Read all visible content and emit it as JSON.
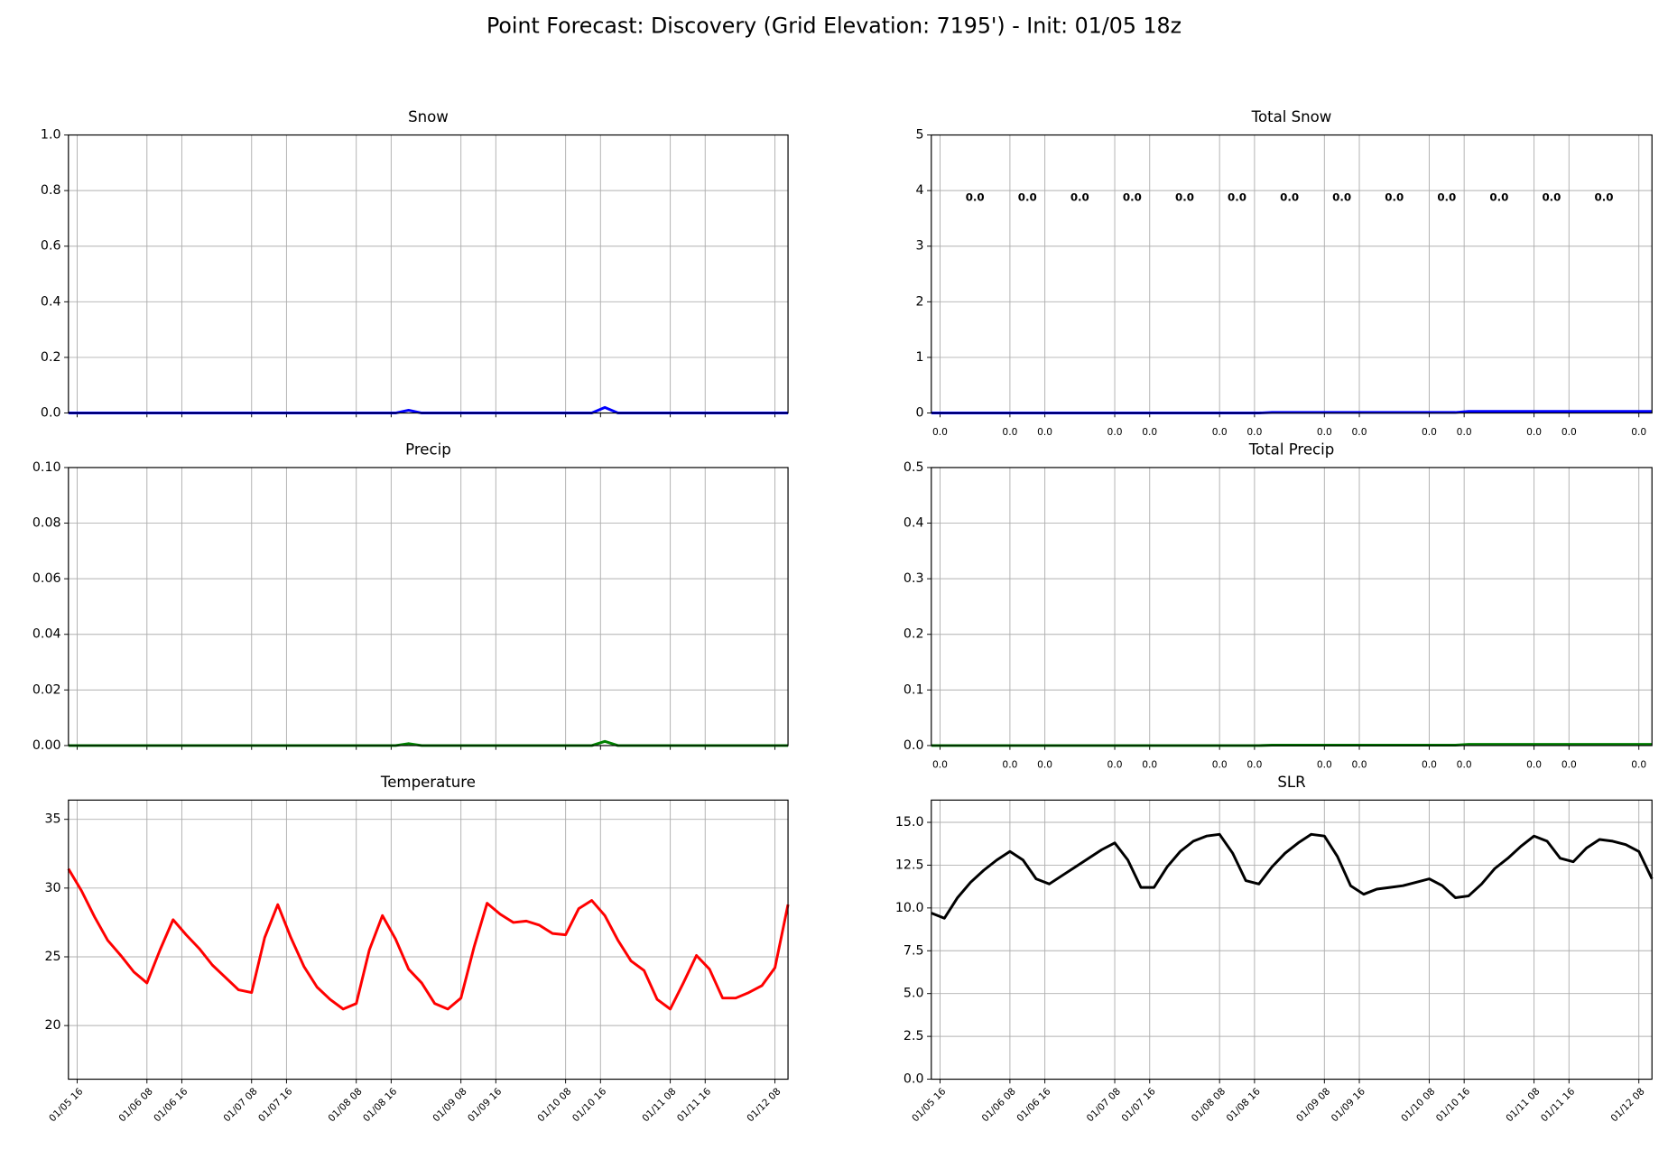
{
  "title": "Point Forecast: Discovery (Grid Elevation: 7195') - Init: 01/05 18z",
  "chart_data": [
    {
      "type": "line",
      "title": "Snow",
      "color": "#0000ff",
      "grid": true,
      "xtick_labels": false,
      "x": [
        "01/05 14",
        "01/05 17",
        "01/05 20",
        "01/05 23",
        "01/06 02",
        "01/06 05",
        "01/06 08",
        "01/06 11",
        "01/06 14",
        "01/06 17",
        "01/06 20",
        "01/06 23",
        "01/07 02",
        "01/07 05",
        "01/07 08",
        "01/07 11",
        "01/07 14",
        "01/07 17",
        "01/07 20",
        "01/07 23",
        "01/08 02",
        "01/08 05",
        "01/08 08",
        "01/08 11",
        "01/08 14",
        "01/08 17",
        "01/08 20",
        "01/08 23",
        "01/09 02",
        "01/09 05",
        "01/09 08",
        "01/09 11",
        "01/09 14",
        "01/09 17",
        "01/09 20",
        "01/09 23",
        "01/10 02",
        "01/10 05",
        "01/10 08",
        "01/10 11",
        "01/10 14",
        "01/10 17",
        "01/10 20",
        "01/10 23",
        "01/11 02",
        "01/11 05",
        "01/11 08",
        "01/11 11",
        "01/11 14",
        "01/11 17",
        "01/11 20",
        "01/11 23",
        "01/12 02",
        "01/12 05",
        "01/12 08",
        "01/12 11"
      ],
      "values": [
        0,
        0,
        0,
        0,
        0,
        0,
        0,
        0,
        0,
        0,
        0,
        0,
        0,
        0,
        0,
        0,
        0,
        0,
        0,
        0,
        0,
        0,
        0,
        0,
        0,
        0,
        0.01,
        0,
        0,
        0,
        0,
        0,
        0,
        0,
        0,
        0,
        0,
        0,
        0,
        0,
        0,
        0.02,
        0,
        0,
        0,
        0,
        0,
        0,
        0,
        0,
        0,
        0,
        0,
        0,
        0,
        0
      ],
      "xlim": [
        "01/05 14",
        "01/12 11"
      ],
      "xticks": [
        "01/05 16",
        "01/06 08",
        "01/06 16",
        "01/07 08",
        "01/07 16",
        "01/08 08",
        "01/08 16",
        "01/09 08",
        "01/09 16",
        "01/10 08",
        "01/10 16",
        "01/11 08",
        "01/11 16",
        "01/12 08"
      ],
      "ylim": [
        0,
        1
      ],
      "yticks": [
        {
          "value": 0,
          "label": "0.0"
        },
        {
          "value": 0.2,
          "label": "0.2"
        },
        {
          "value": 0.4,
          "label": "0.4"
        },
        {
          "value": 0.6,
          "label": "0.6"
        },
        {
          "value": 0.8,
          "label": "0.8"
        },
        {
          "value": 1,
          "label": "1.0"
        }
      ]
    },
    {
      "type": "line",
      "title": "Total Snow",
      "color": "#0000ff",
      "grid": true,
      "annotation_color": "#0000ff",
      "x": [
        "01/05 14",
        "01/05 17",
        "01/05 20",
        "01/05 23",
        "01/06 02",
        "01/06 05",
        "01/06 08",
        "01/06 11",
        "01/06 14",
        "01/06 17",
        "01/06 20",
        "01/06 23",
        "01/07 02",
        "01/07 05",
        "01/07 08",
        "01/07 11",
        "01/07 14",
        "01/07 17",
        "01/07 20",
        "01/07 23",
        "01/08 02",
        "01/08 05",
        "01/08 08",
        "01/08 11",
        "01/08 14",
        "01/08 17",
        "01/08 20",
        "01/08 23",
        "01/09 02",
        "01/09 05",
        "01/09 08",
        "01/09 11",
        "01/09 14",
        "01/09 17",
        "01/09 20",
        "01/09 23",
        "01/10 02",
        "01/10 05",
        "01/10 08",
        "01/10 11",
        "01/10 14",
        "01/10 17",
        "01/10 20",
        "01/10 23",
        "01/11 02",
        "01/11 05",
        "01/11 08",
        "01/11 11",
        "01/11 14",
        "01/11 17",
        "01/11 20",
        "01/11 23",
        "01/12 02",
        "01/12 05",
        "01/12 08",
        "01/12 11"
      ],
      "values": [
        0,
        0,
        0,
        0,
        0,
        0,
        0,
        0,
        0,
        0,
        0,
        0,
        0,
        0,
        0,
        0,
        0,
        0,
        0,
        0,
        0,
        0,
        0,
        0,
        0,
        0,
        0.01,
        0.01,
        0.01,
        0.01,
        0.01,
        0.01,
        0.01,
        0.01,
        0.01,
        0.01,
        0.01,
        0.01,
        0.01,
        0.01,
        0.01,
        0.03,
        0.03,
        0.03,
        0.03,
        0.03,
        0.03,
        0.03,
        0.03,
        0.03,
        0.03,
        0.03,
        0.03,
        0.03,
        0.03,
        0.03
      ],
      "xlim": [
        "01/05 14",
        "01/12 11"
      ],
      "xticks": [
        {
          "value": "01/05 16",
          "label": "0.0"
        },
        {
          "value": "01/06 08",
          "label": "0.0"
        },
        {
          "value": "01/06 16",
          "label": "0.0"
        },
        {
          "value": "01/07 08",
          "label": "0.0"
        },
        {
          "value": "01/07 16",
          "label": "0.0"
        },
        {
          "value": "01/08 08",
          "label": "0.0"
        },
        {
          "value": "01/08 16",
          "label": "0.0"
        },
        {
          "value": "01/09 08",
          "label": "0.0"
        },
        {
          "value": "01/09 16",
          "label": "0.0"
        },
        {
          "value": "01/10 08",
          "label": "0.0"
        },
        {
          "value": "01/10 16",
          "label": "0.0"
        },
        {
          "value": "01/11 08",
          "label": "0.0"
        },
        {
          "value": "01/11 16",
          "label": "0.0"
        },
        {
          "value": "01/12 08",
          "label": "0.0"
        }
      ],
      "ylim": [
        0,
        5
      ],
      "yticks": [
        0,
        1,
        2,
        3,
        4,
        5
      ],
      "annotations": [
        {
          "x": "01/06 00",
          "text": "0.0"
        },
        {
          "x": "01/06 12",
          "text": "0.0"
        },
        {
          "x": "01/07 00",
          "text": "0.0"
        },
        {
          "x": "01/07 12",
          "text": "0.0"
        },
        {
          "x": "01/08 00",
          "text": "0.0"
        },
        {
          "x": "01/08 12",
          "text": "0.0"
        },
        {
          "x": "01/09 00",
          "text": "0.0"
        },
        {
          "x": "01/09 12",
          "text": "0.0"
        },
        {
          "x": "01/10 00",
          "text": "0.0"
        },
        {
          "x": "01/10 12",
          "text": "0.0"
        },
        {
          "x": "01/11 00",
          "text": "0.0"
        },
        {
          "x": "01/11 12",
          "text": "0.0"
        },
        {
          "x": "01/12 00",
          "text": "0.0"
        }
      ]
    },
    {
      "type": "line",
      "title": "Precip",
      "color": "#008000",
      "grid": true,
      "xtick_labels": false,
      "x": [
        "01/05 14",
        "01/05 17",
        "01/05 20",
        "01/05 23",
        "01/06 02",
        "01/06 05",
        "01/06 08",
        "01/06 11",
        "01/06 14",
        "01/06 17",
        "01/06 20",
        "01/06 23",
        "01/07 02",
        "01/07 05",
        "01/07 08",
        "01/07 11",
        "01/07 14",
        "01/07 17",
        "01/07 20",
        "01/07 23",
        "01/08 02",
        "01/08 05",
        "01/08 08",
        "01/08 11",
        "01/08 14",
        "01/08 17",
        "01/08 20",
        "01/08 23",
        "01/09 02",
        "01/09 05",
        "01/09 08",
        "01/09 11",
        "01/09 14",
        "01/09 17",
        "01/09 20",
        "01/09 23",
        "01/10 02",
        "01/10 05",
        "01/10 08",
        "01/10 11",
        "01/10 14",
        "01/10 17",
        "01/10 20",
        "01/10 23",
        "01/11 02",
        "01/11 05",
        "01/11 08",
        "01/11 11",
        "01/11 14",
        "01/11 17",
        "01/11 20",
        "01/11 23",
        "01/12 02",
        "01/12 05",
        "01/12 08",
        "01/12 11"
      ],
      "values": [
        0,
        0,
        0,
        0,
        0,
        0,
        0,
        0,
        0,
        0,
        0,
        0,
        0,
        0,
        0,
        0,
        0,
        0,
        0,
        0,
        0,
        0,
        0,
        0,
        0,
        0,
        0.0007,
        0,
        0,
        0,
        0,
        0,
        0,
        0,
        0,
        0,
        0,
        0,
        0,
        0,
        0,
        0.0015,
        0,
        0,
        0,
        0,
        0,
        0,
        0,
        0,
        0,
        0,
        0,
        0,
        0,
        0
      ],
      "xlim": [
        "01/05 14",
        "01/12 11"
      ],
      "xticks": [
        "01/05 16",
        "01/06 08",
        "01/06 16",
        "01/07 08",
        "01/07 16",
        "01/08 08",
        "01/08 16",
        "01/09 08",
        "01/09 16",
        "01/10 08",
        "01/10 16",
        "01/11 08",
        "01/11 16",
        "01/12 08"
      ],
      "ylim": [
        0,
        0.1
      ],
      "yticks": [
        {
          "value": 0,
          "label": "0.00"
        },
        {
          "value": 0.02,
          "label": "0.02"
        },
        {
          "value": 0.04,
          "label": "0.04"
        },
        {
          "value": 0.06,
          "label": "0.06"
        },
        {
          "value": 0.08,
          "label": "0.08"
        },
        {
          "value": 0.1,
          "label": "0.10"
        }
      ]
    },
    {
      "type": "line",
      "title": "Total Precip",
      "color": "#008000",
      "grid": true,
      "x": [
        "01/05 14",
        "01/05 17",
        "01/05 20",
        "01/05 23",
        "01/06 02",
        "01/06 05",
        "01/06 08",
        "01/06 11",
        "01/06 14",
        "01/06 17",
        "01/06 20",
        "01/06 23",
        "01/07 02",
        "01/07 05",
        "01/07 08",
        "01/07 11",
        "01/07 14",
        "01/07 17",
        "01/07 20",
        "01/07 23",
        "01/08 02",
        "01/08 05",
        "01/08 08",
        "01/08 11",
        "01/08 14",
        "01/08 17",
        "01/08 20",
        "01/08 23",
        "01/09 02",
        "01/09 05",
        "01/09 08",
        "01/09 11",
        "01/09 14",
        "01/09 17",
        "01/09 20",
        "01/09 23",
        "01/10 02",
        "01/10 05",
        "01/10 08",
        "01/10 11",
        "01/10 14",
        "01/10 17",
        "01/10 20",
        "01/10 23",
        "01/11 02",
        "01/11 05",
        "01/11 08",
        "01/11 11",
        "01/11 14",
        "01/11 17",
        "01/11 20",
        "01/11 23",
        "01/12 02",
        "01/12 05",
        "01/12 08",
        "01/12 11"
      ],
      "values": [
        0,
        0,
        0,
        0,
        0,
        0,
        0,
        0,
        0,
        0,
        0,
        0,
        0,
        0,
        0,
        0,
        0,
        0,
        0,
        0,
        0,
        0,
        0,
        0,
        0,
        0,
        0.0007,
        0.0007,
        0.0007,
        0.0007,
        0.0007,
        0.0007,
        0.0007,
        0.0007,
        0.0007,
        0.0007,
        0.0007,
        0.0007,
        0.0007,
        0.0007,
        0.0007,
        0.0022,
        0.0022,
        0.0022,
        0.0022,
        0.0022,
        0.0022,
        0.0022,
        0.0022,
        0.0022,
        0.0022,
        0.0022,
        0.0022,
        0.0022,
        0.0022,
        0.0022
      ],
      "xlim": [
        "01/05 14",
        "01/12 11"
      ],
      "xticks": [
        {
          "value": "01/05 16",
          "label": "0.0"
        },
        {
          "value": "01/06 08",
          "label": "0.0"
        },
        {
          "value": "01/06 16",
          "label": "0.0"
        },
        {
          "value": "01/07 08",
          "label": "0.0"
        },
        {
          "value": "01/07 16",
          "label": "0.0"
        },
        {
          "value": "01/08 08",
          "label": "0.0"
        },
        {
          "value": "01/08 16",
          "label": "0.0"
        },
        {
          "value": "01/09 08",
          "label": "0.0"
        },
        {
          "value": "01/09 16",
          "label": "0.0"
        },
        {
          "value": "01/10 08",
          "label": "0.0"
        },
        {
          "value": "01/10 16",
          "label": "0.0"
        },
        {
          "value": "01/11 08",
          "label": "0.0"
        },
        {
          "value": "01/11 16",
          "label": "0.0"
        },
        {
          "value": "01/12 08",
          "label": "0.0"
        }
      ],
      "ylim": [
        0,
        0.5
      ],
      "yticks": [
        {
          "value": 0,
          "label": "0.0"
        },
        {
          "value": 0.1,
          "label": "0.1"
        },
        {
          "value": 0.2,
          "label": "0.2"
        },
        {
          "value": 0.3,
          "label": "0.3"
        },
        {
          "value": 0.4,
          "label": "0.4"
        },
        {
          "value": 0.5,
          "label": "0.5"
        }
      ]
    },
    {
      "type": "line",
      "title": "Temperature",
      "color": "#ff0000",
      "grid": true,
      "x": [
        "01/05 14",
        "01/05 17",
        "01/05 20",
        "01/05 23",
        "01/06 02",
        "01/06 05",
        "01/06 08",
        "01/06 11",
        "01/06 14",
        "01/06 17",
        "01/06 20",
        "01/06 23",
        "01/07 02",
        "01/07 05",
        "01/07 08",
        "01/07 11",
        "01/07 14",
        "01/07 17",
        "01/07 20",
        "01/07 23",
        "01/08 02",
        "01/08 05",
        "01/08 08",
        "01/08 11",
        "01/08 14",
        "01/08 17",
        "01/08 20",
        "01/08 23",
        "01/09 02",
        "01/09 05",
        "01/09 08",
        "01/09 11",
        "01/09 14",
        "01/09 17",
        "01/09 20",
        "01/09 23",
        "01/10 02",
        "01/10 05",
        "01/10 08",
        "01/10 11",
        "01/10 14",
        "01/10 17",
        "01/10 20",
        "01/10 23",
        "01/11 02",
        "01/11 05",
        "01/11 08",
        "01/11 11",
        "01/11 14",
        "01/11 17",
        "01/11 20",
        "01/11 23",
        "01/12 02",
        "01/12 05",
        "01/12 08",
        "01/12 11"
      ],
      "values": [
        31.4,
        29.8,
        27.9,
        26.2,
        25.1,
        23.9,
        23.1,
        25.5,
        27.7,
        26.6,
        25.6,
        24.4,
        23.5,
        22.6,
        22.4,
        26.4,
        28.8,
        26.4,
        24.3,
        22.8,
        21.9,
        21.2,
        21.6,
        25.5,
        28.0,
        26.3,
        24.1,
        23.1,
        21.6,
        21.2,
        22.0,
        25.7,
        28.9,
        28.1,
        27.5,
        27.6,
        27.3,
        26.7,
        26.6,
        28.5,
        29.1,
        28.0,
        26.2,
        24.7,
        24.0,
        21.9,
        21.2,
        23.1,
        25.1,
        24.1,
        22.0,
        22.0,
        22.4,
        22.9,
        24.2,
        28.8
      ],
      "xlim": [
        "01/05 14",
        "01/12 11"
      ],
      "xticks": [
        "01/05 16",
        "01/06 08",
        "01/06 16",
        "01/07 08",
        "01/07 16",
        "01/08 08",
        "01/08 16",
        "01/09 08",
        "01/09 16",
        "01/10 08",
        "01/10 16",
        "01/11 08",
        "01/11 16",
        "01/12 08"
      ],
      "ylim": [
        16.1,
        36.4
      ],
      "yticks": [
        20,
        25,
        30,
        35
      ]
    },
    {
      "type": "line",
      "title": "SLR",
      "color": "#000000",
      "grid": true,
      "x": [
        "01/05 14",
        "01/05 17",
        "01/05 20",
        "01/05 23",
        "01/06 02",
        "01/06 05",
        "01/06 08",
        "01/06 11",
        "01/06 14",
        "01/06 17",
        "01/06 20",
        "01/06 23",
        "01/07 02",
        "01/07 05",
        "01/07 08",
        "01/07 11",
        "01/07 14",
        "01/07 17",
        "01/07 20",
        "01/07 23",
        "01/08 02",
        "01/08 05",
        "01/08 08",
        "01/08 11",
        "01/08 14",
        "01/08 17",
        "01/08 20",
        "01/08 23",
        "01/09 02",
        "01/09 05",
        "01/09 08",
        "01/09 11",
        "01/09 14",
        "01/09 17",
        "01/09 20",
        "01/09 23",
        "01/10 02",
        "01/10 05",
        "01/10 08",
        "01/10 11",
        "01/10 14",
        "01/10 17",
        "01/10 20",
        "01/10 23",
        "01/11 02",
        "01/11 05",
        "01/11 08",
        "01/11 11",
        "01/11 14",
        "01/11 17",
        "01/11 20",
        "01/11 23",
        "01/12 02",
        "01/12 05",
        "01/12 08",
        "01/12 11"
      ],
      "values": [
        9.7,
        9.4,
        10.6,
        11.5,
        12.2,
        12.8,
        13.3,
        12.8,
        11.7,
        11.4,
        11.9,
        12.4,
        12.9,
        13.4,
        13.8,
        12.8,
        11.2,
        11.2,
        12.4,
        13.3,
        13.9,
        14.2,
        14.3,
        13.2,
        11.6,
        11.4,
        12.4,
        13.2,
        13.8,
        14.3,
        14.2,
        13.0,
        11.3,
        10.8,
        11.1,
        11.2,
        11.3,
        11.5,
        11.7,
        11.3,
        10.6,
        10.7,
        11.4,
        12.3,
        12.9,
        13.6,
        14.2,
        13.9,
        12.9,
        12.7,
        13.5,
        14.0,
        13.9,
        13.7,
        13.3,
        11.7
      ],
      "xlim": [
        "01/05 14",
        "01/12 11"
      ],
      "xticks": [
        "01/05 16",
        "01/06 08",
        "01/06 16",
        "01/07 08",
        "01/07 16",
        "01/08 08",
        "01/08 16",
        "01/09 08",
        "01/09 16",
        "01/10 08",
        "01/10 16",
        "01/11 08",
        "01/11 16",
        "01/12 08"
      ],
      "ylim": [
        0,
        16.3
      ],
      "yticks": [
        {
          "value": 0,
          "label": "0.0"
        },
        {
          "value": 2.5,
          "label": "2.5"
        },
        {
          "value": 5,
          "label": "5.0"
        },
        {
          "value": 7.5,
          "label": "7.5"
        },
        {
          "value": 10,
          "label": "10.0"
        },
        {
          "value": 12.5,
          "label": "12.5"
        },
        {
          "value": 15,
          "label": "15.0"
        }
      ]
    }
  ]
}
